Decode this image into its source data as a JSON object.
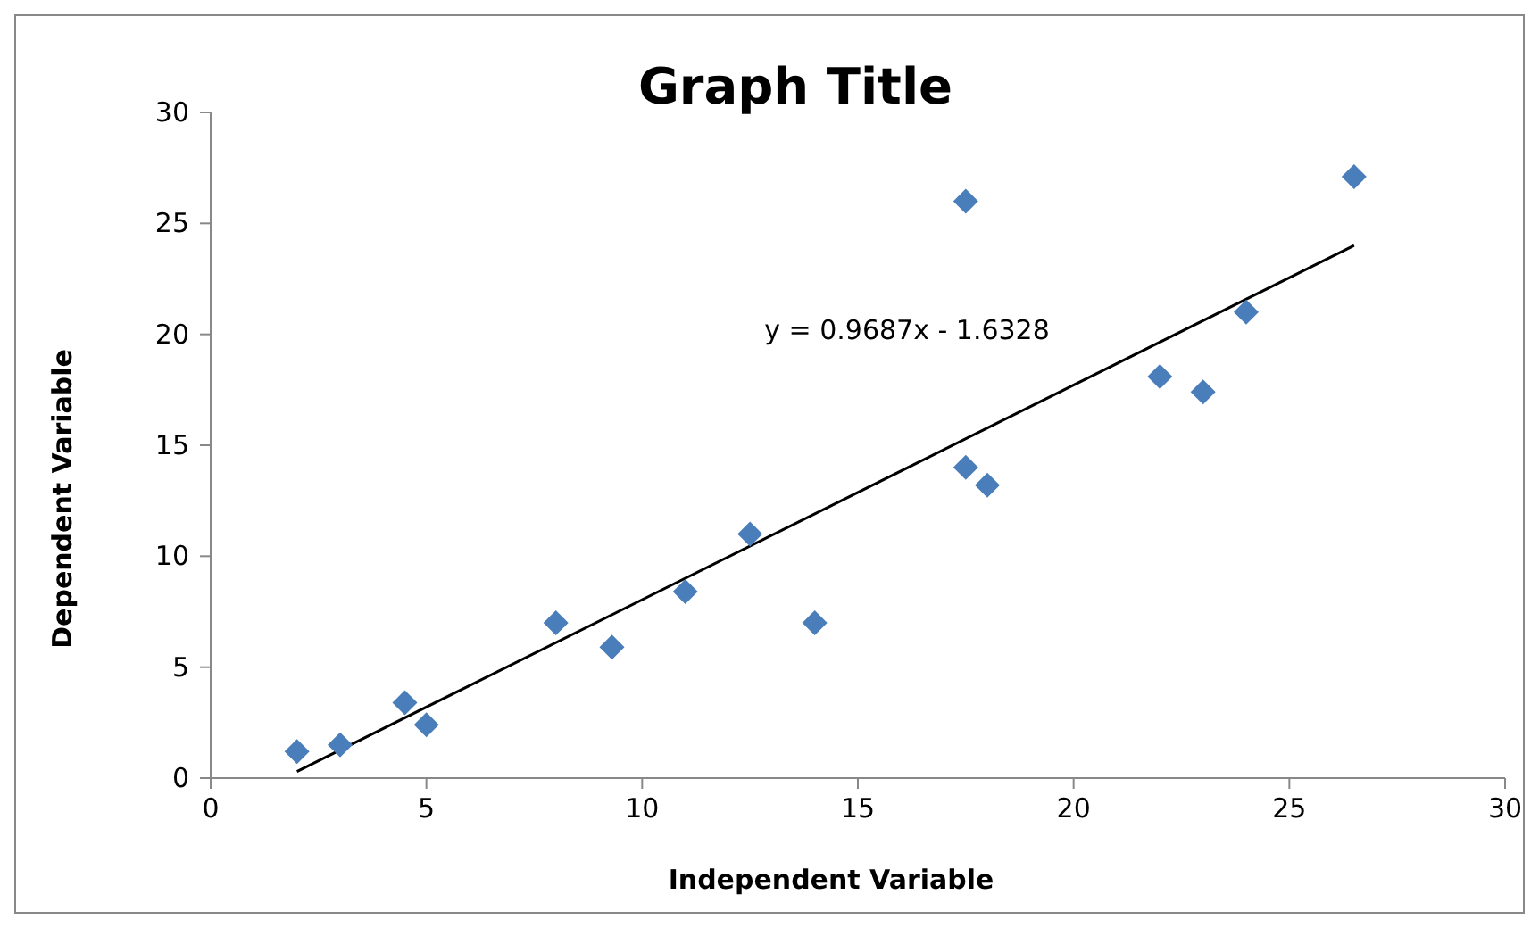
{
  "chart_data": {
    "type": "scatter",
    "title": "Graph Title",
    "xlabel": "Independent Variable",
    "ylabel": "Dependent Variable",
    "xlim": [
      0,
      30
    ],
    "xticks": [
      0,
      5,
      10,
      15,
      20,
      25,
      30
    ],
    "ylim": [
      0,
      30
    ],
    "yticks": [
      0,
      5,
      10,
      15,
      20,
      25,
      30
    ],
    "grid": false,
    "annotations": [
      "y = 0.9687x - 1.6328"
    ],
    "series": [
      {
        "color": "#4a7ebb",
        "marker": "diamond",
        "x": [
          2,
          3,
          4.5,
          5,
          8,
          9.3,
          11,
          12.5,
          14,
          17.5,
          17.5,
          18,
          22,
          23,
          24,
          26.5
        ],
        "values": [
          1.2,
          1.5,
          3.4,
          2.4,
          7,
          5.9,
          8.4,
          11,
          7,
          26,
          14,
          13.2,
          18.1,
          17.4,
          21,
          27.1
        ]
      },
      {
        "type": "line",
        "color": "#000000",
        "line_style": "solid",
        "x": [
          2,
          26.5
        ],
        "values": [
          0.3,
          24
        ]
      }
    ]
  }
}
